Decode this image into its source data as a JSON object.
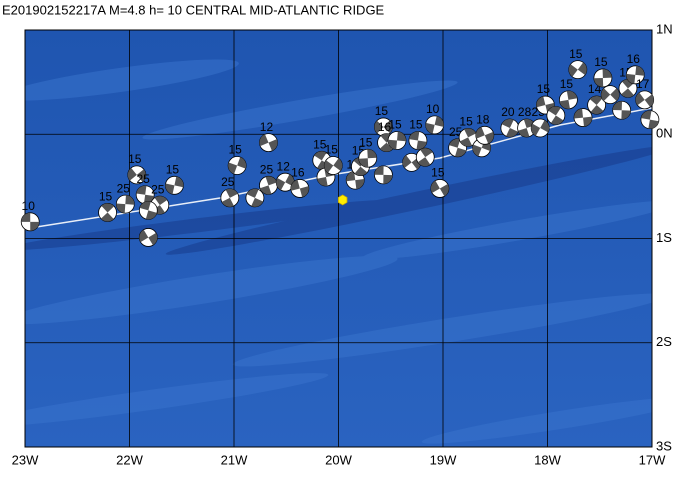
{
  "title": "E201902152217A M=4.8 h= 10 CENTRAL MID-ATLANTIC RIDGE",
  "lon_range": [
    -23,
    -17
  ],
  "lat_range": [
    -3,
    1
  ],
  "lon_ticks": [
    {
      "value": -23,
      "label": "23W"
    },
    {
      "value": -22,
      "label": "22W"
    },
    {
      "value": -21,
      "label": "21W"
    },
    {
      "value": -20,
      "label": "20W"
    },
    {
      "value": -19,
      "label": "19W"
    },
    {
      "value": -18,
      "label": "18W"
    },
    {
      "value": -17,
      "label": "17W"
    }
  ],
  "lat_ticks": [
    {
      "value": 1,
      "label": "1N"
    },
    {
      "value": 0,
      "label": "0N"
    },
    {
      "value": -1,
      "label": "1S"
    },
    {
      "value": -2,
      "label": "2S"
    },
    {
      "value": -3,
      "label": "3S"
    }
  ],
  "epicenter": {
    "lon": -19.96,
    "lat": -0.63
  },
  "events": [
    {
      "lon": -22.95,
      "lat": -0.84,
      "depth": "10"
    },
    {
      "lon": -22.21,
      "lat": -0.75,
      "depth": "15"
    },
    {
      "lon": -22.04,
      "lat": -0.67,
      "depth": "25"
    },
    {
      "lon": -21.93,
      "lat": -0.39,
      "depth": "15"
    },
    {
      "lon": -21.85,
      "lat": -0.58,
      "depth": "25"
    },
    {
      "lon": -21.71,
      "lat": -0.68,
      "depth": "25"
    },
    {
      "lon": -21.57,
      "lat": -0.49,
      "depth": "15"
    },
    {
      "lon": -21.82,
      "lat": -0.99,
      "depth": null
    },
    {
      "lon": -21.82,
      "lat": -0.73,
      "depth": null
    },
    {
      "lon": -21.04,
      "lat": -0.61,
      "depth": "25"
    },
    {
      "lon": -20.97,
      "lat": -0.3,
      "depth": "15"
    },
    {
      "lon": -20.67,
      "lat": -0.08,
      "depth": "12"
    },
    {
      "lon": -20.8,
      "lat": -0.61,
      "depth": null
    },
    {
      "lon": -20.67,
      "lat": -0.49,
      "depth": "25"
    },
    {
      "lon": -20.51,
      "lat": -0.46,
      "depth": "12"
    },
    {
      "lon": -20.37,
      "lat": -0.52,
      "depth": "16"
    },
    {
      "lon": -20.16,
      "lat": -0.25,
      "depth": "15"
    },
    {
      "lon": -20.12,
      "lat": -0.41,
      "depth": null
    },
    {
      "lon": -20.05,
      "lat": -0.3,
      "depth": "15"
    },
    {
      "lon": -19.84,
      "lat": -0.44,
      "depth": "14"
    },
    {
      "lon": -19.79,
      "lat": -0.31,
      "depth": "15"
    },
    {
      "lon": -19.72,
      "lat": -0.23,
      "depth": "15"
    },
    {
      "lon": -19.57,
      "lat": 0.07,
      "depth": "15"
    },
    {
      "lon": -19.57,
      "lat": -0.39,
      "depth": null
    },
    {
      "lon": -19.54,
      "lat": -0.08,
      "depth": "16"
    },
    {
      "lon": -19.44,
      "lat": -0.06,
      "depth": "15"
    },
    {
      "lon": -19.3,
      "lat": -0.27,
      "depth": null
    },
    {
      "lon": -19.24,
      "lat": -0.06,
      "depth": "15"
    },
    {
      "lon": -19.17,
      "lat": -0.22,
      "depth": null
    },
    {
      "lon": -19.08,
      "lat": 0.09,
      "depth": "10"
    },
    {
      "lon": -19.03,
      "lat": -0.52,
      "depth": "15"
    },
    {
      "lon": -18.86,
      "lat": -0.13,
      "depth": "25"
    },
    {
      "lon": -18.76,
      "lat": -0.03,
      "depth": "15"
    },
    {
      "lon": -18.63,
      "lat": -0.13,
      "depth": null
    },
    {
      "lon": -18.6,
      "lat": -0.01,
      "depth": "18"
    },
    {
      "lon": -18.36,
      "lat": 0.06,
      "depth": "20"
    },
    {
      "lon": -18.2,
      "lat": 0.06,
      "depth": "28"
    },
    {
      "lon": -18.07,
      "lat": 0.06,
      "depth": "25"
    },
    {
      "lon": -18.02,
      "lat": 0.28,
      "depth": "15"
    },
    {
      "lon": -17.92,
      "lat": 0.18,
      "depth": null
    },
    {
      "lon": -17.8,
      "lat": 0.33,
      "depth": "15"
    },
    {
      "lon": -17.71,
      "lat": 0.62,
      "depth": "15"
    },
    {
      "lon": -17.66,
      "lat": 0.16,
      "depth": null
    },
    {
      "lon": -17.53,
      "lat": 0.28,
      "depth": "14"
    },
    {
      "lon": -17.47,
      "lat": 0.54,
      "depth": "15"
    },
    {
      "lon": -17.4,
      "lat": 0.38,
      "depth": null
    },
    {
      "lon": -17.29,
      "lat": 0.23,
      "depth": null
    },
    {
      "lon": -17.23,
      "lat": 0.44,
      "depth": "15"
    },
    {
      "lon": -17.16,
      "lat": 0.57,
      "depth": "16"
    },
    {
      "lon": -17.07,
      "lat": 0.33,
      "depth": "17"
    },
    {
      "lon": -17.02,
      "lat": 0.14,
      "depth": null
    }
  ]
}
